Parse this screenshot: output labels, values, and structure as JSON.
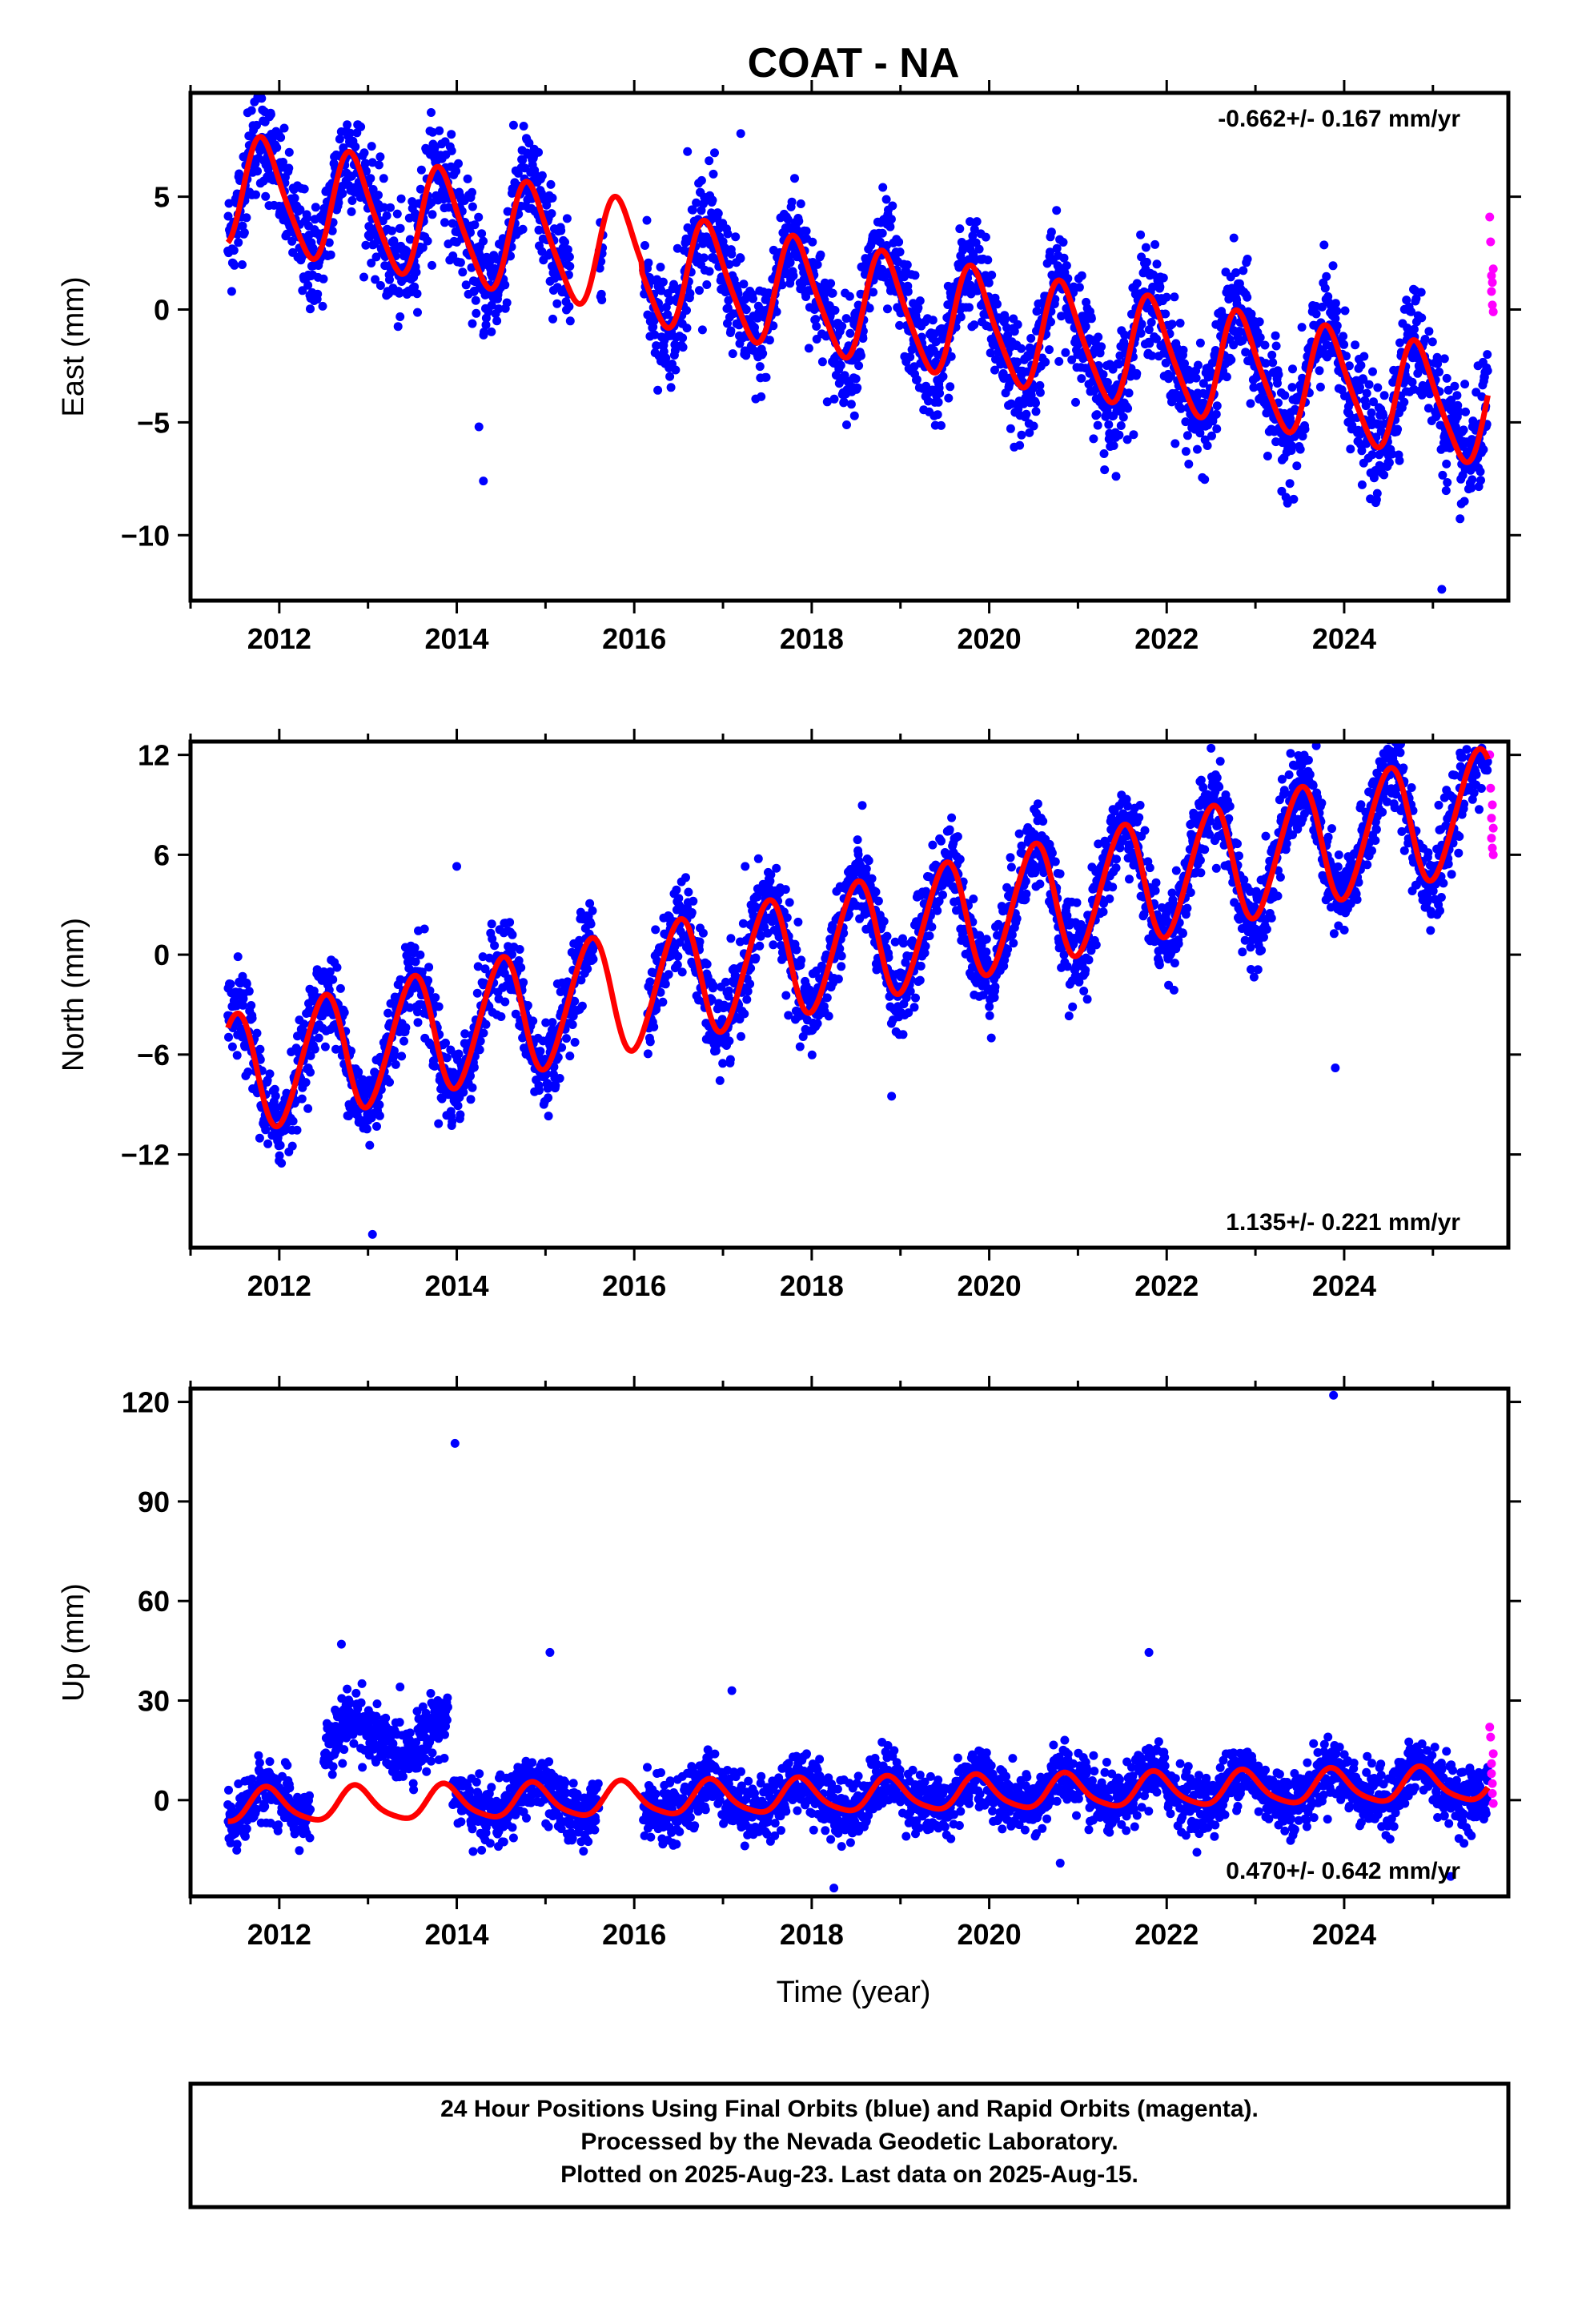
{
  "title": "COAT - NA",
  "xlabel": "Time (year)",
  "footer": {
    "line1": "24 Hour Positions Using Final Orbits (blue) and Rapid Orbits (magenta).",
    "line2": "Processed by the Nevada Geodetic Laboratory.",
    "line3": "Plotted on 2025-Aug-23. Last data on 2025-Aug-15."
  },
  "colors": {
    "final": "#0000ff",
    "rapid": "#ff00ff",
    "model": "#ff0000"
  },
  "chart_data": [
    {
      "type": "scatter",
      "name": "east",
      "ylabel": "East (mm)",
      "rate_label": "-0.662+/- 0.167 mm/yr",
      "xlim": [
        2011.0,
        2025.85
      ],
      "ylim": [
        -12.9,
        9.6
      ],
      "yticks": [
        -10,
        -5,
        0,
        5
      ],
      "xticks": [
        2012,
        2014,
        2016,
        2018,
        2020,
        2022,
        2024
      ],
      "data_start": 2011.42,
      "data_end": 2025.62,
      "model": {
        "offset": 5.3,
        "trend": -0.662,
        "breaks": [
          {
            "at": 2016.08,
            "jump": -0.4
          }
        ],
        "annual_amp": 2.4,
        "annual_phase": 0.58,
        "semi_amp": 0.4,
        "semi_phase": 0.1
      },
      "scatter_sd": 1.2,
      "gaps": [
        [
          2015.28,
          2015.6
        ],
        [
          2015.65,
          2016.1
        ]
      ],
      "outliers": [
        [
          2011.72,
          9.2
        ],
        [
          2014.3,
          -7.6
        ],
        [
          2014.25,
          -5.2
        ],
        [
          2017.2,
          7.8
        ],
        [
          2016.6,
          7.0
        ],
        [
          2025.1,
          -12.4
        ],
        [
          2021.3,
          -7.1
        ]
      ],
      "rapid": [
        [
          2025.64,
          4.1
        ],
        [
          2025.65,
          3.0
        ],
        [
          2025.66,
          1.5
        ],
        [
          2025.66,
          0.8
        ],
        [
          2025.67,
          1.2
        ],
        [
          2025.67,
          0.2
        ],
        [
          2025.68,
          -0.1
        ],
        [
          2025.68,
          1.8
        ]
      ]
    },
    {
      "type": "scatter",
      "name": "north",
      "ylabel": "North (mm)",
      "rate_label": "1.135+/- 0.221 mm/yr",
      "xlim": [
        2011.0,
        2025.85
      ],
      "ylim": [
        -17.6,
        12.8
      ],
      "yticks": [
        -12,
        -6,
        0,
        6,
        12
      ],
      "xticks": [
        2012,
        2014,
        2016,
        2018,
        2020,
        2022,
        2024
      ],
      "data_start": 2011.42,
      "data_end": 2025.62,
      "model": {
        "offset": -7.3,
        "trend": 1.135,
        "breaks": [],
        "annual_amp": 3.6,
        "annual_phase": 0.25,
        "semi_amp": 0.3,
        "semi_phase": 0.0
      },
      "scatter_sd": 1.3,
      "gaps": [
        [
          2015.55,
          2016.15
        ]
      ],
      "outliers": [
        [
          2014.0,
          5.3
        ],
        [
          2013.05,
          -16.8
        ],
        [
          2018.9,
          -8.5
        ],
        [
          2023.9,
          -6.8
        ],
        [
          2017.25,
          5.3
        ],
        [
          2022.5,
          12.4
        ]
      ],
      "rapid": [
        [
          2025.64,
          12.0
        ],
        [
          2025.65,
          10.0
        ],
        [
          2025.66,
          8.2
        ],
        [
          2025.66,
          7.0
        ],
        [
          2025.67,
          6.4
        ],
        [
          2025.67,
          9.0
        ],
        [
          2025.68,
          7.6
        ],
        [
          2025.68,
          6.0
        ]
      ]
    },
    {
      "type": "scatter",
      "name": "up",
      "ylabel": "Up (mm)",
      "rate_label": "0.470+/- 0.642 mm/yr",
      "xlim": [
        2011.0,
        2025.85
      ],
      "ylim": [
        -29.0,
        124.0
      ],
      "yticks": [
        0,
        30,
        60,
        90,
        120
      ],
      "xticks": [
        2012,
        2014,
        2016,
        2018,
        2020,
        2022,
        2024
      ],
      "data_start": 2011.42,
      "data_end": 2025.62,
      "model": {
        "offset": -2.0,
        "trend": 0.47,
        "breaks": [],
        "annual_amp": 5.0,
        "annual_phase": 0.62,
        "semi_amp": 1.0,
        "semi_phase": 0.2
      },
      "scatter_sd": 4.5,
      "gaps": [
        [
          2012.35,
          2012.5
        ],
        [
          2013.9,
          2013.95
        ],
        [
          2015.6,
          2016.1
        ]
      ],
      "shifted": [
        [
          2012.5,
          2013.95,
          20.0
        ]
      ],
      "outliers": [
        [
          2013.98,
          107.5
        ],
        [
          2023.88,
          122.0
        ],
        [
          2012.7,
          47.0
        ],
        [
          2015.05,
          44.5
        ],
        [
          2021.8,
          44.5
        ],
        [
          2017.1,
          33.0
        ],
        [
          2020.8,
          -19.0
        ],
        [
          2018.25,
          -26.5
        ],
        [
          2025.2,
          -23.0
        ]
      ],
      "rapid": [
        [
          2025.64,
          22.0
        ],
        [
          2025.65,
          19.0
        ],
        [
          2025.66,
          11.0
        ],
        [
          2025.66,
          8.0
        ],
        [
          2025.67,
          5.0
        ],
        [
          2025.67,
          2.0
        ],
        [
          2025.68,
          -1.0
        ],
        [
          2025.68,
          14.0
        ]
      ]
    }
  ]
}
